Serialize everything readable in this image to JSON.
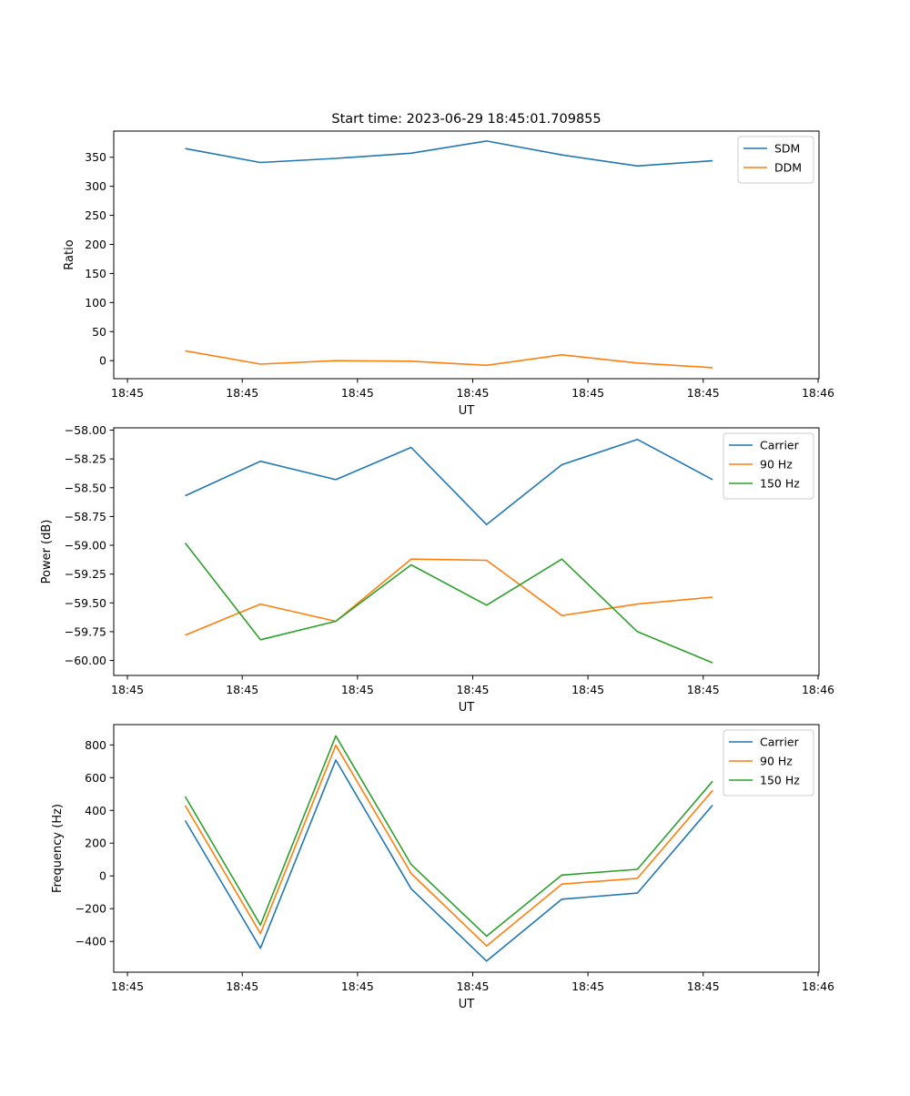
{
  "figure_title": "Start time: 2023-06-29 18:45:01.709855",
  "chart_data": [
    {
      "type": "line",
      "title": "Start time: 2023-06-29 18:45:01.709855",
      "xlabel": "UT",
      "ylabel": "Ratio",
      "x_tick_labels": [
        "18:45",
        "18:45",
        "18:45",
        "18:45",
        "18:45",
        "18:45",
        "18:46"
      ],
      "y_ticks": [
        0,
        50,
        100,
        150,
        200,
        250,
        300,
        350
      ],
      "y_tick_labels": [
        "0",
        "50",
        "100",
        "150",
        "200",
        "250",
        "300",
        "350"
      ],
      "ylim": [
        -31,
        395
      ],
      "grid": false,
      "legend": "top-right",
      "series": [
        {
          "name": "SDM",
          "color": "#1f77b4",
          "values": [
            365,
            341,
            348,
            357,
            378,
            354,
            335,
            344
          ]
        },
        {
          "name": "DDM",
          "color": "#ff7f0e",
          "values": [
            17,
            -6,
            0,
            -1,
            -8,
            10,
            -4,
            -12
          ]
        }
      ]
    },
    {
      "type": "line",
      "title": "",
      "xlabel": "UT",
      "ylabel": "Power (dB)",
      "x_tick_labels": [
        "18:45",
        "18:45",
        "18:45",
        "18:45",
        "18:45",
        "18:45",
        "18:46"
      ],
      "y_ticks": [
        -58.0,
        -58.25,
        -58.5,
        -58.75,
        -59.0,
        -59.25,
        -59.5,
        -59.75,
        -60.0
      ],
      "y_tick_labels": [
        "−58.00",
        "−58.25",
        "−58.50",
        "−58.75",
        "−59.00",
        "−59.25",
        "−59.50",
        "−59.75",
        "−60.00"
      ],
      "ylim": [
        -60.13,
        -57.98
      ],
      "grid": false,
      "legend": "top-right",
      "series": [
        {
          "name": "Carrier",
          "color": "#1f77b4",
          "values": [
            -58.57,
            -58.27,
            -58.43,
            -58.15,
            -58.82,
            -58.3,
            -58.08,
            -58.43
          ]
        },
        {
          "name": "90 Hz",
          "color": "#ff7f0e",
          "values": [
            -59.78,
            -59.51,
            -59.66,
            -59.12,
            -59.13,
            -59.61,
            -59.51,
            -59.45
          ]
        },
        {
          "name": "150 Hz",
          "color": "#2ca02c",
          "values": [
            -58.98,
            -59.82,
            -59.66,
            -59.17,
            -59.52,
            -59.12,
            -59.75,
            -60.02
          ]
        }
      ]
    },
    {
      "type": "line",
      "title": "",
      "xlabel": "UT",
      "ylabel": "Frequency (Hz)",
      "x_tick_labels": [
        "18:45",
        "18:45",
        "18:45",
        "18:45",
        "18:45",
        "18:45",
        "18:46"
      ],
      "y_ticks": [
        -400,
        -200,
        0,
        200,
        400,
        600,
        800
      ],
      "y_tick_labels": [
        "−400",
        "−200",
        "0",
        "200",
        "400",
        "600",
        "800"
      ],
      "ylim": [
        -588,
        924
      ],
      "grid": false,
      "legend": "top-right",
      "series": [
        {
          "name": "Carrier",
          "color": "#1f77b4",
          "values": [
            338,
            -442,
            708,
            -78,
            -520,
            -142,
            -105,
            432
          ]
        },
        {
          "name": "90 Hz",
          "color": "#ff7f0e",
          "values": [
            430,
            -352,
            798,
            15,
            -428,
            -50,
            -15,
            522
          ]
        },
        {
          "name": "150 Hz",
          "color": "#2ca02c",
          "values": [
            485,
            -300,
            855,
            70,
            -368,
            5,
            40,
            578
          ]
        }
      ]
    }
  ]
}
